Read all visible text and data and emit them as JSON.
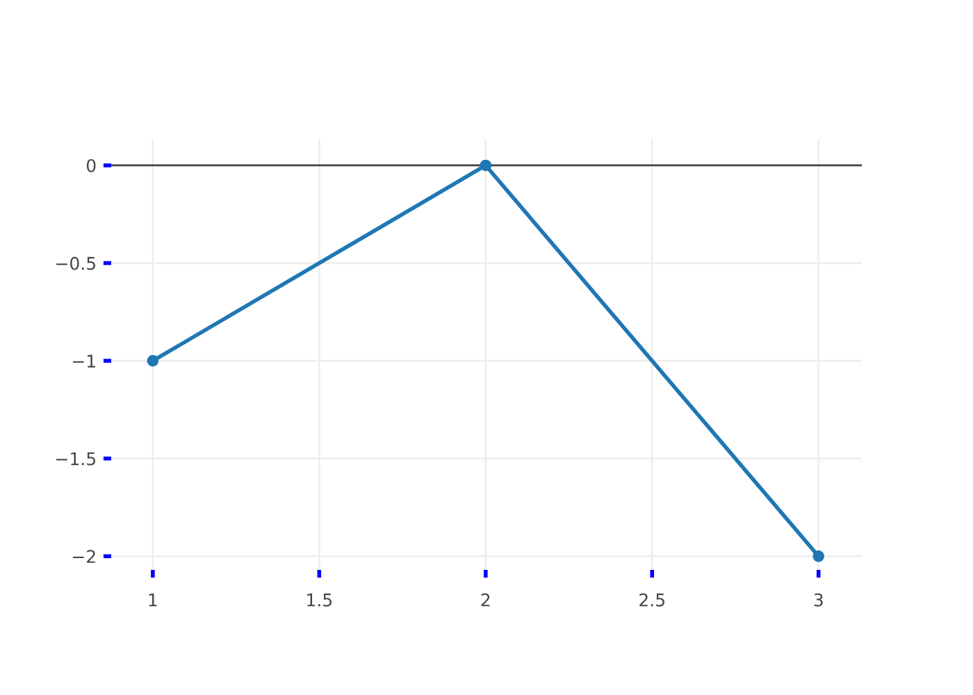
{
  "chart_data": {
    "type": "line",
    "x": [
      1,
      2,
      3
    ],
    "series": [
      {
        "color": "#1f77b4",
        "values": [
          -1,
          0,
          -2
        ]
      }
    ],
    "xlim": [
      0.875,
      3.13
    ],
    "ylim": [
      -2.07,
      0.135
    ],
    "xticks": [
      1,
      1.5,
      2,
      2.5,
      3
    ],
    "yticks": [
      {
        "value": 0,
        "label": "0"
      },
      {
        "value": -0.5,
        "label": "−0.5"
      },
      {
        "value": -1,
        "label": "−1"
      },
      {
        "value": -1.5,
        "label": "−1.5"
      },
      {
        "value": -2,
        "label": "−2"
      }
    ],
    "grid": true,
    "marker": "circle",
    "line_style": "solid",
    "ref_lines": [
      {
        "axis": "y",
        "value": 0,
        "color": "#444444"
      }
    ]
  }
}
